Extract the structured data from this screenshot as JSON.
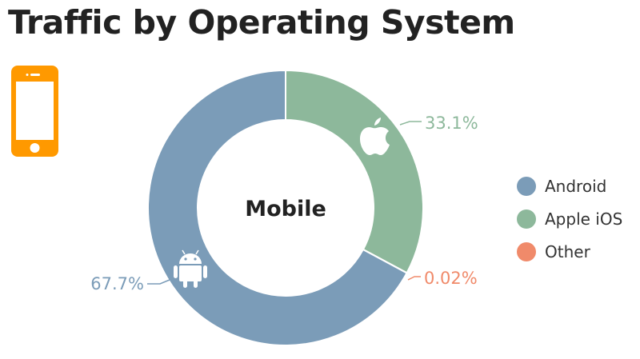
{
  "chart_data": {
    "type": "pie",
    "title": "Traffic by Operating System",
    "center_label": "Mobile",
    "categories": [
      "Apple iOS",
      "Other",
      "Android"
    ],
    "values": [
      33.1,
      0.02,
      67.7
    ],
    "labels": [
      "33.1%",
      "0.02%",
      "67.7%"
    ],
    "colors": [
      "#8db89b",
      "#f08a6a",
      "#7b9cb8"
    ],
    "legend": {
      "placement": "right",
      "entries": [
        "Android",
        "Apple iOS",
        "Other"
      ],
      "colors": [
        "#7b9cb8",
        "#8db89b",
        "#f08a6a"
      ]
    },
    "icons": {
      "header": "smartphone-icon",
      "Apple iOS": "apple-icon",
      "Android": "android-icon"
    },
    "icon_color": "#ff9900"
  }
}
